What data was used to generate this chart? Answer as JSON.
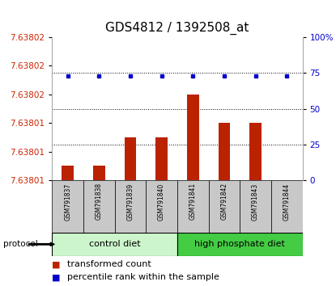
{
  "title": "GDS4812 / 1392508_at",
  "samples": [
    "GSM791837",
    "GSM791838",
    "GSM791839",
    "GSM791840",
    "GSM791841",
    "GSM791842",
    "GSM791843",
    "GSM791844"
  ],
  "red_vals": [
    7.638011,
    7.638011,
    7.638013,
    7.638013,
    7.638016,
    7.638014,
    7.638014,
    7.63801
  ],
  "blue_vals": [
    73,
    73,
    73,
    73,
    73,
    73,
    73,
    73
  ],
  "y_min": 7.63801,
  "y_max": 7.63802,
  "ytick_positions": [
    7.63801,
    7.638012,
    7.638014,
    7.638016,
    7.638018,
    7.63802
  ],
  "right_yticks": [
    0,
    25,
    50,
    75,
    100
  ],
  "right_ytick_labels": [
    "0",
    "25",
    "50",
    "75",
    "100%"
  ],
  "dotted_pcts": [
    25,
    50,
    75
  ],
  "groups": [
    {
      "label": "control diet",
      "start": 0,
      "end": 3,
      "color": "#ccf5cc"
    },
    {
      "label": "high phosphate diet",
      "start": 4,
      "end": 7,
      "color": "#44cc44"
    }
  ],
  "bar_color": "#bb2200",
  "dot_color": "#0000cc",
  "label_bg": "#c8c8c8",
  "protocol_text": "protocol",
  "legend": [
    "transformed count",
    "percentile rank within the sample"
  ],
  "legend_colors": [
    "#bb2200",
    "#0000cc"
  ],
  "title_fontsize": 11,
  "tick_fontsize": 7.5,
  "sample_fontsize": 5.5,
  "group_fontsize": 8,
  "legend_fontsize": 8
}
